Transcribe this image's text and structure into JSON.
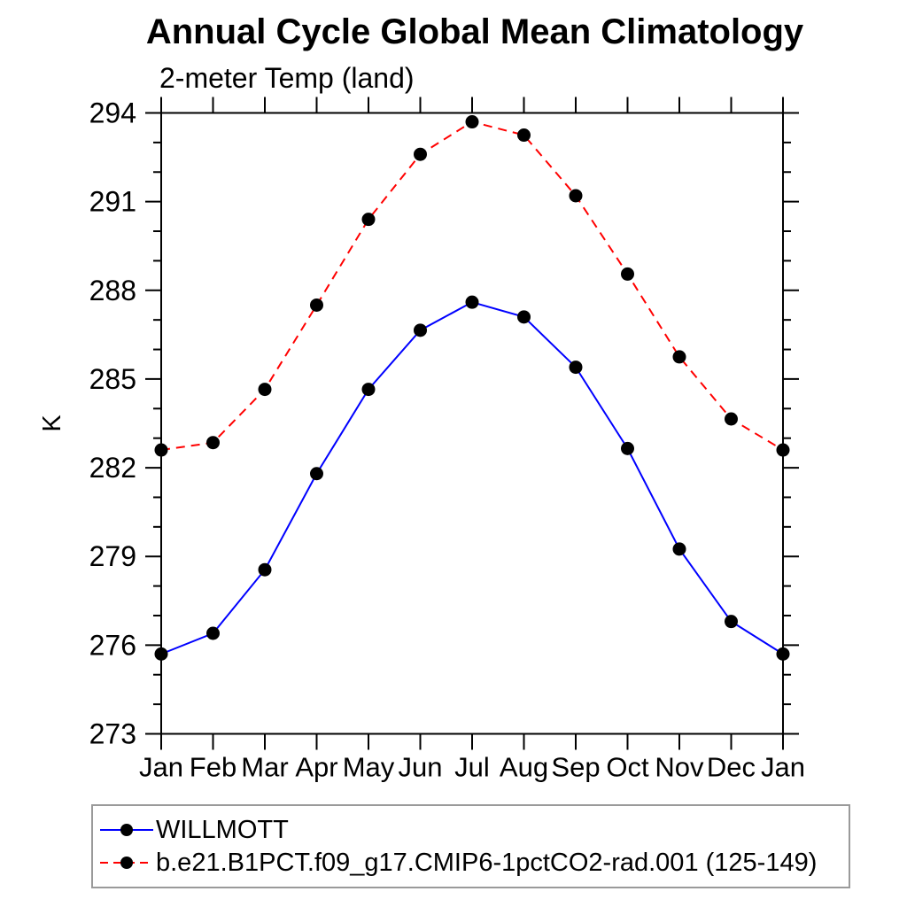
{
  "page": {
    "title": "Annual Cycle Global Mean Climatology",
    "subtitle": "2-meter Temp (land)"
  },
  "chart_data": {
    "type": "line",
    "title": "Annual Cycle Global Mean Climatology",
    "subtitle": "2-meter Temp (land)",
    "xlabel": "",
    "ylabel": "K",
    "categories": [
      "Jan",
      "Feb",
      "Mar",
      "Apr",
      "May",
      "Jun",
      "Jul",
      "Aug",
      "Sep",
      "Oct",
      "Nov",
      "Dec",
      "Jan"
    ],
    "ylim": [
      273,
      294
    ],
    "yticks_major": [
      273,
      276,
      279,
      282,
      285,
      288,
      291,
      294
    ],
    "ytick_minor_step": 1,
    "grid": false,
    "tick_style": "outward-all-four-sides",
    "legend_position": "bottom-left-box",
    "series": [
      {
        "name": "WILLMOTT",
        "color": "#0000ff",
        "line_style": "solid",
        "marker": "filled-circle",
        "marker_color": "#000000",
        "values": [
          275.7,
          276.4,
          278.55,
          281.8,
          284.65,
          286.65,
          287.6,
          287.1,
          285.4,
          282.65,
          279.25,
          276.8,
          275.7
        ]
      },
      {
        "name": "b.e21.B1PCT.f09_g17.CMIP6-1pctCO2-rad.001 (125-149)",
        "color": "#ff0000",
        "line_style": "dashed",
        "marker": "filled-circle",
        "marker_color": "#000000",
        "values": [
          282.6,
          282.85,
          284.65,
          287.5,
          290.4,
          292.6,
          293.7,
          293.25,
          291.2,
          288.55,
          285.75,
          283.65,
          282.6
        ]
      }
    ],
    "colors": {
      "axis": "#000000",
      "text": "#000000",
      "legend_border": "#9a9a9a",
      "background": "#ffffff"
    }
  }
}
